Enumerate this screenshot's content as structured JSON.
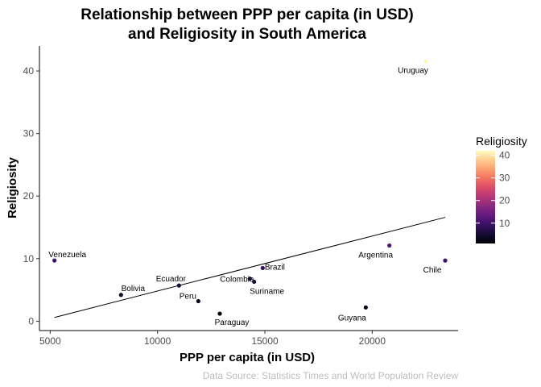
{
  "chart_data": {
    "type": "scatter",
    "title_line1": "Relationship between PPP per capita (in USD)",
    "title_line2": "and Religiosity in South America",
    "xlabel": "PPP per capita (in USD)",
    "ylabel": "Religiosity",
    "xlim": [
      4500,
      24000
    ],
    "ylim": [
      -1.5,
      44
    ],
    "x_ticks": [
      5000,
      10000,
      15000,
      20000
    ],
    "x_tick_labels": [
      "5000",
      "10000",
      "15000",
      "20000"
    ],
    "y_ticks": [
      0,
      10,
      20,
      30,
      40
    ],
    "y_tick_labels": [
      "0",
      "10",
      "20",
      "30",
      "40"
    ],
    "grid": false,
    "caption": "Data Source: Statistics Times and World Population Review",
    "legend": {
      "title": "Religiosity",
      "placement": "right",
      "tick_labels": [
        "10",
        "20",
        "30",
        "40"
      ],
      "ticks": [
        10,
        20,
        30,
        40
      ],
      "range": [
        1,
        42
      ],
      "colormap": "magma"
    },
    "trend_line": {
      "x": [
        5200,
        23400
      ],
      "y": [
        0.6,
        16.6
      ]
    },
    "points": [
      {
        "label": "Uruguay",
        "x": 22500,
        "y": 41.5
      },
      {
        "label": "Venezuela",
        "x": 5200,
        "y": 9.7
      },
      {
        "label": "Argentina",
        "x": 20800,
        "y": 12.1
      },
      {
        "label": "Chile",
        "x": 23400,
        "y": 9.7
      },
      {
        "label": "Brazil",
        "x": 14900,
        "y": 8.5
      },
      {
        "label": "Colombia",
        "x": 14300,
        "y": 6.8
      },
      {
        "label": "Suriname",
        "x": 14500,
        "y": 6.3
      },
      {
        "label": "Ecuador",
        "x": 11000,
        "y": 5.7
      },
      {
        "label": "Bolivia",
        "x": 8300,
        "y": 4.2
      },
      {
        "label": "Peru",
        "x": 11900,
        "y": 3.2
      },
      {
        "label": "Paraguay",
        "x": 12900,
        "y": 1.2
      },
      {
        "label": "Guyana",
        "x": 19700,
        "y": 2.2
      }
    ]
  }
}
